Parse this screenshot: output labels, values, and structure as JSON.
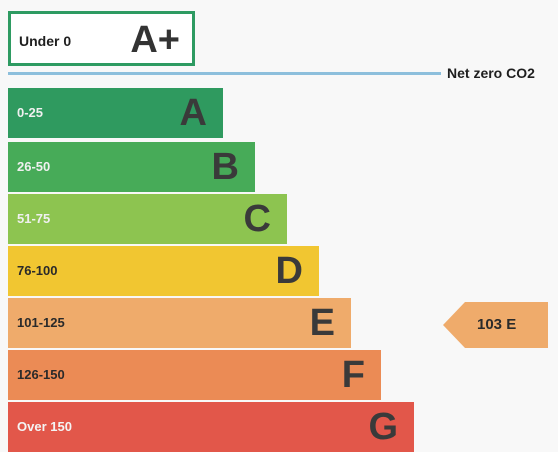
{
  "top_band": {
    "range": "Under 0",
    "letter": "A+",
    "color": "#2e9b62"
  },
  "net_zero": {
    "label": "Net zero CO2",
    "color": "#8dbfdc"
  },
  "bands": [
    {
      "range": "0-25",
      "letter": "A",
      "color": "#2f9a5f"
    },
    {
      "range": "26-50",
      "letter": "B",
      "color": "#47ab58"
    },
    {
      "range": "51-75",
      "letter": "C",
      "color": "#8dc450"
    },
    {
      "range": "76-100",
      "letter": "D",
      "color": "#f1c631"
    },
    {
      "range": "101-125",
      "letter": "E",
      "color": "#efab6b"
    },
    {
      "range": "126-150",
      "letter": "F",
      "color": "#eb8b55"
    },
    {
      "range": "Over 150",
      "letter": "G",
      "color": "#e2574a"
    }
  ],
  "current_rating": {
    "label": "103  E",
    "color": "#efab6b"
  }
}
